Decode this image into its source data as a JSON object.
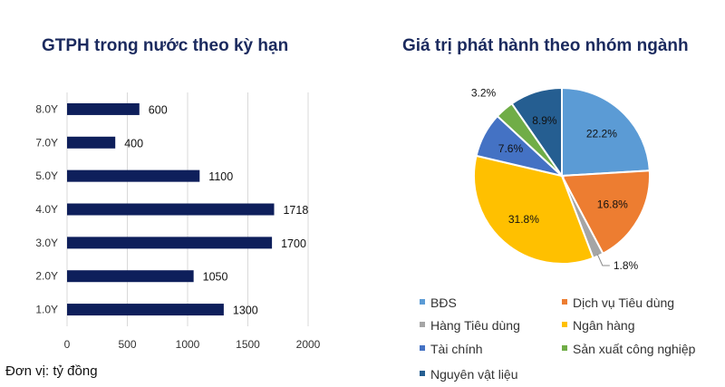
{
  "footnote": "Đơn vị: tỷ đồng",
  "chart_data": [
    {
      "type": "bar",
      "orientation": "horizontal",
      "title": "GTPH trong nước theo kỳ hạn",
      "categories": [
        "8.0Y",
        "7.0Y",
        "5.0Y",
        "4.0Y",
        "3.0Y",
        "2.0Y",
        "1.0Y"
      ],
      "values": [
        600,
        400,
        1100,
        1718,
        1700,
        1050,
        1300
      ],
      "xlim": [
        0,
        2000
      ],
      "xticks": [
        "0",
        "500",
        "1000",
        "1500",
        "2000"
      ],
      "grid": true,
      "color": "#0e1f5b"
    },
    {
      "type": "pie",
      "title": "Giá trị phát hành theo nhóm ngành",
      "slices": [
        {
          "label": "BĐS",
          "value": 22.2,
          "text": "22.2%",
          "color": "#5b9bd5"
        },
        {
          "label": "Dịch vụ Tiêu dùng",
          "value": 16.8,
          "text": "16.8%",
          "color": "#ed7d31"
        },
        {
          "label": "Hàng Tiêu dùng",
          "value": 1.8,
          "text": "1.8%",
          "color": "#a5a5a5"
        },
        {
          "label": "Ngân hàng",
          "value": 31.8,
          "text": "31.8%",
          "color": "#ffc000"
        },
        {
          "label": "Tài chính",
          "value": 7.6,
          "text": "7.6%",
          "color": "#4472c4"
        },
        {
          "label": "Sản xuất công nghiệp",
          "value": 3.2,
          "text": "3.2%",
          "color": "#70ad47"
        },
        {
          "label": "Nguyên vật liệu",
          "value": 8.9,
          "text": "8.9%",
          "color": "#255e91"
        }
      ],
      "legend": "bottom"
    }
  ]
}
